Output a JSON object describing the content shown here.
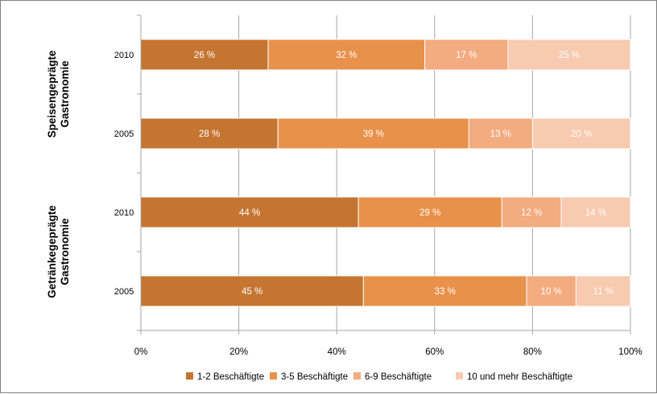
{
  "chart_data": {
    "type": "bar",
    "orientation": "horizontal",
    "stacked": "percent",
    "title": "",
    "xlabel": "",
    "ylabel": "",
    "xlim": [
      0,
      100
    ],
    "x_ticks": [
      "0%",
      "20%",
      "40%",
      "60%",
      "80%",
      "100%"
    ],
    "grid": true,
    "legend_position": "bottom",
    "groups": [
      {
        "label": "Speisengeprägte Gastronomie",
        "rows": [
          {
            "category": "2010",
            "values": [
              26,
              32,
              17,
              25
            ],
            "labels": [
              "26 %",
              "32 %",
              "17 %",
              "25 %"
            ]
          },
          {
            "category": "2005",
            "values": [
              28,
              39,
              13,
              20
            ],
            "labels": [
              "28 %",
              "39 %",
              "13 %",
              "20 %"
            ]
          }
        ]
      },
      {
        "label": "Getränkegeprägte Gastronomie",
        "rows": [
          {
            "category": "2010",
            "values": [
              44,
              29,
              12,
              14
            ],
            "labels": [
              "44 %",
              "29 %",
              "12 %",
              "14 %"
            ]
          },
          {
            "category": "2005",
            "values": [
              45,
              33,
              10,
              11
            ],
            "labels": [
              "45 %",
              "33 %",
              "10 %",
              "11 %"
            ]
          }
        ]
      }
    ],
    "series": [
      {
        "name": "1-2 Beschäftigte",
        "color": "#c57532"
      },
      {
        "name": "3-5 Beschäftigte",
        "color": "#e8914a"
      },
      {
        "name": "6-9 Beschäftigte",
        "color": "#f3ab80"
      },
      {
        "name": "10 und mehr Beschäftigte",
        "color": "#f8cab0"
      }
    ]
  }
}
